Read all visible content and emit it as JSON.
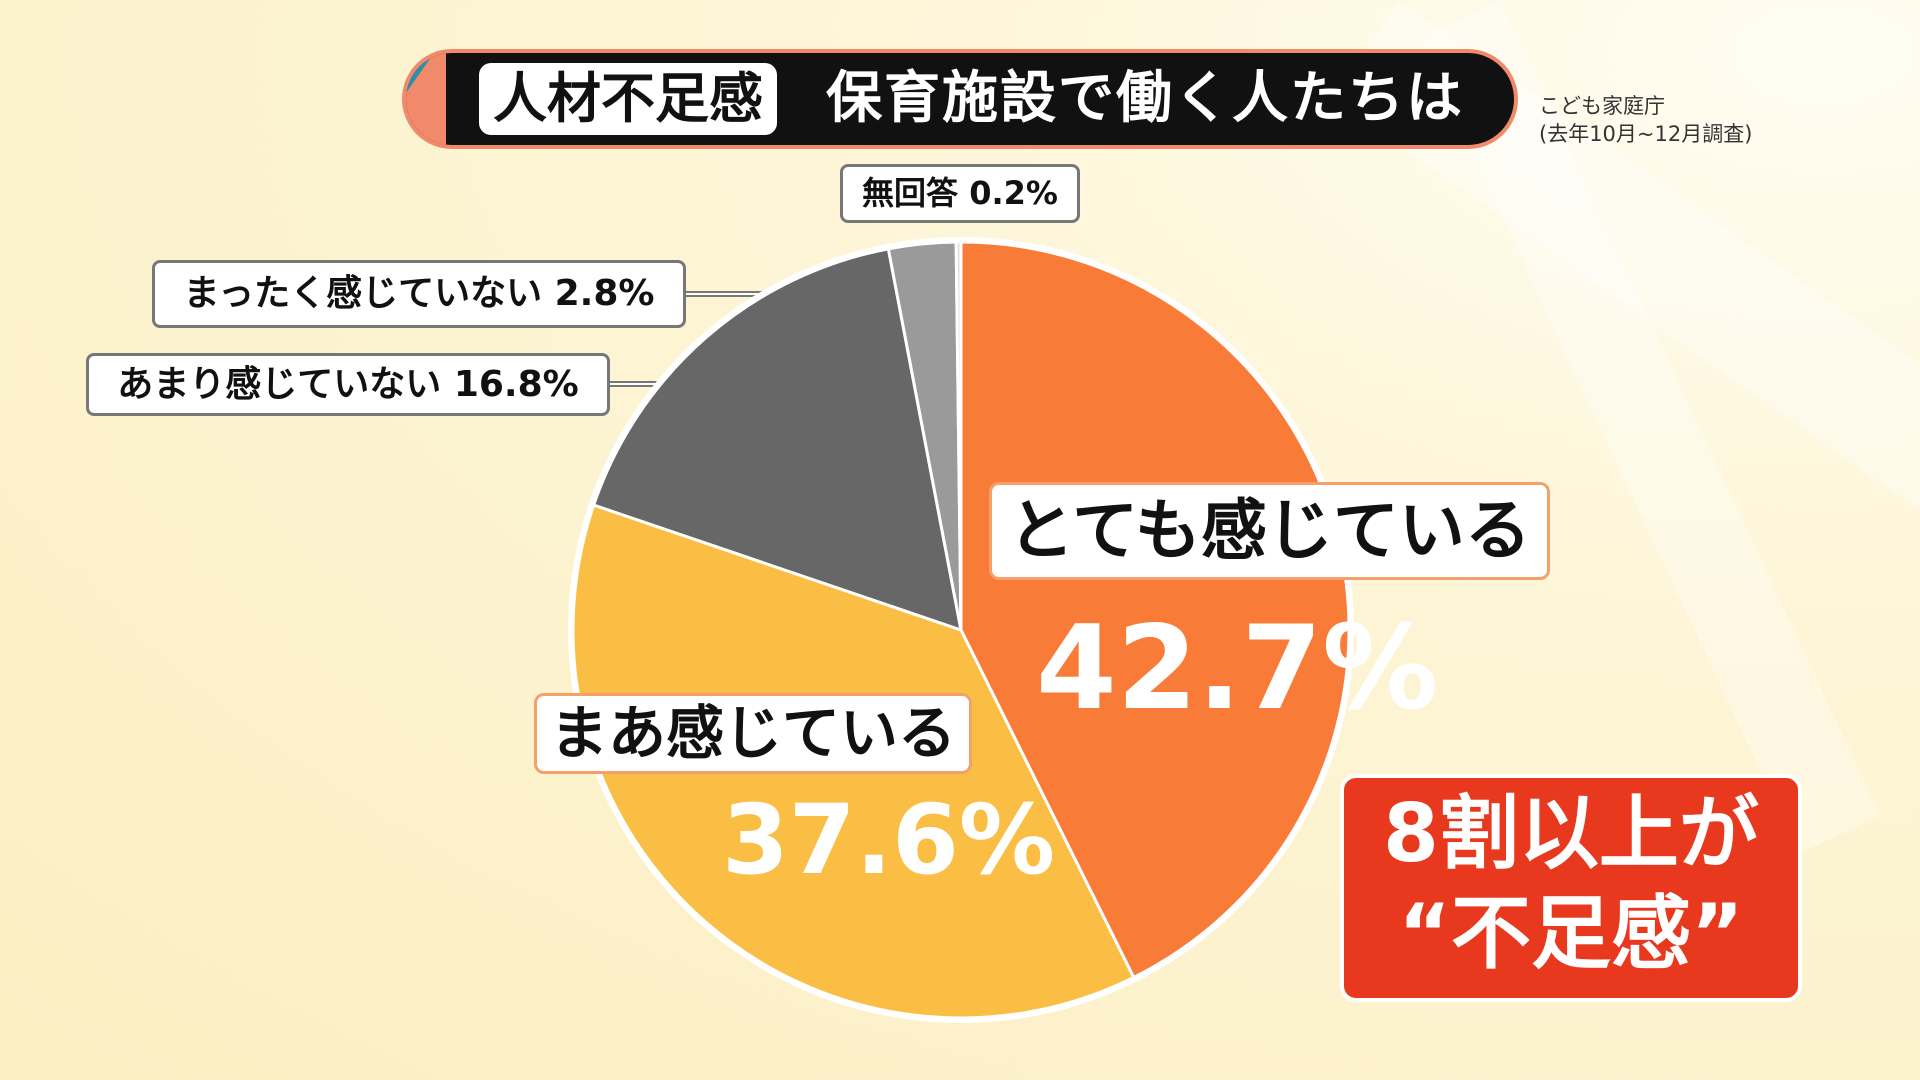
{
  "header": {
    "tag": "人材不足感",
    "title": "保育施設で働く人たちは",
    "source_line1": "こども家庭庁",
    "source_line2": "(去年10月~12月調査)"
  },
  "chart_data": {
    "type": "pie",
    "title": "人材不足感 保育施設で働く人たちは",
    "start": "top",
    "direction": "clockwise",
    "slices": [
      {
        "label": "とても感じている",
        "value": 42.7,
        "display": "42.7%",
        "color": "#F97B38"
      },
      {
        "label": "まあ感じている",
        "value": 37.6,
        "display": "37.6%",
        "color": "#FBBE44"
      },
      {
        "label": "あまり感じていない",
        "value": 16.8,
        "display": "16.8%",
        "color": "#676767"
      },
      {
        "label": "まったく感じていない",
        "value": 2.8,
        "display": "2.8%",
        "color": "#9A9A9A"
      },
      {
        "label": "無回答",
        "value": 0.2,
        "display": "0.2%",
        "color": "#E0E0E0"
      }
    ]
  },
  "callout": {
    "line1": "8割以上が",
    "line2": "“不足感”"
  }
}
